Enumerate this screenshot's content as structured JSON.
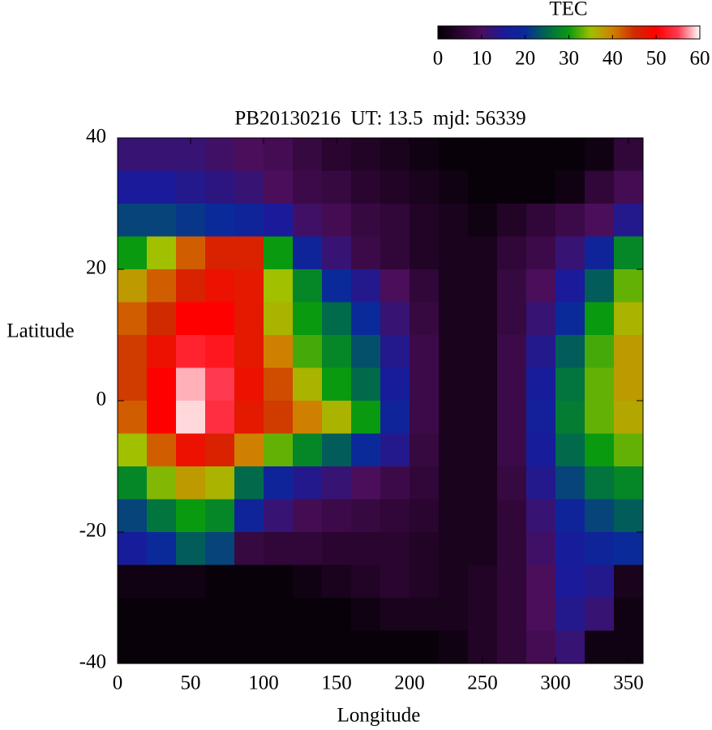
{
  "chart_data": {
    "type": "heatmap",
    "title": "PB20130216  UT: 13.5  mjd: 56339",
    "xlabel": "Longitude",
    "ylabel": "Latitude",
    "colorbar_label": "TEC",
    "xlim": [
      0,
      360
    ],
    "xticks": [
      0,
      50,
      100,
      150,
      200,
      250,
      300,
      350
    ],
    "ylim": [
      -40,
      40
    ],
    "yticks": [
      -40,
      -20,
      0,
      20,
      40
    ],
    "zlim": [
      0,
      60
    ],
    "zticks": [
      0,
      10,
      20,
      30,
      40,
      50,
      60
    ],
    "colormap": [
      "#000000",
      "#2a0530",
      "#4a0e5a",
      "#1a1a9a",
      "#0a2a9a",
      "#006a4a",
      "#0a9a10",
      "#a0c000",
      "#d08000",
      "#d02a00",
      "#ff0000",
      "#ff3a50",
      "#ffffff"
    ],
    "x": [
      10,
      30,
      50,
      70,
      90,
      110,
      130,
      150,
      170,
      190,
      210,
      230,
      250,
      270,
      290,
      310,
      330,
      350
    ],
    "y": [
      37.5,
      32.5,
      27.5,
      22.5,
      17.5,
      12.5,
      7.5,
      2.5,
      -2.5,
      -7.5,
      -12.5,
      -17.5,
      -22.5,
      -27.5,
      -32.5,
      -37.5
    ],
    "z": [
      [
        12,
        12,
        12,
        11,
        10,
        9,
        7,
        5,
        4,
        3,
        2,
        1,
        1,
        1,
        1,
        1,
        2,
        6
      ],
      [
        15,
        15,
        14,
        13,
        12,
        10,
        8,
        7,
        5,
        4,
        3,
        2,
        1,
        1,
        1,
        2,
        6,
        9
      ],
      [
        22,
        22,
        21,
        20,
        18,
        15,
        11,
        9,
        7,
        6,
        4,
        3,
        2,
        4,
        6,
        8,
        10,
        14
      ],
      [
        30,
        35,
        42,
        46,
        46,
        30,
        18,
        12,
        8,
        6,
        4,
        3,
        3,
        6,
        8,
        12,
        18,
        28
      ],
      [
        38,
        42,
        46,
        48,
        47,
        35,
        28,
        20,
        14,
        10,
        6,
        3,
        3,
        7,
        10,
        15,
        24,
        33
      ],
      [
        42,
        45,
        50,
        50,
        47,
        36,
        30,
        25,
        20,
        12,
        7,
        3,
        3,
        7,
        12,
        20,
        30,
        36
      ],
      [
        44,
        48,
        53,
        52,
        47,
        40,
        32,
        28,
        23,
        14,
        8,
        3,
        3,
        8,
        14,
        24,
        32,
        38
      ],
      [
        44,
        50,
        58,
        55,
        48,
        43,
        36,
        30,
        25,
        16,
        8,
        3,
        3,
        8,
        16,
        26,
        33,
        38
      ],
      [
        42,
        50,
        59,
        54,
        47,
        44,
        40,
        36,
        30,
        18,
        8,
        3,
        3,
        8,
        17,
        27,
        33,
        37
      ],
      [
        35,
        42,
        48,
        46,
        40,
        33,
        28,
        24,
        20,
        14,
        7,
        3,
        3,
        8,
        16,
        25,
        30,
        33
      ],
      [
        28,
        34,
        38,
        36,
        25,
        18,
        14,
        12,
        10,
        8,
        6,
        3,
        3,
        7,
        14,
        22,
        26,
        28
      ],
      [
        22,
        26,
        30,
        28,
        18,
        12,
        9,
        8,
        7,
        6,
        5,
        3,
        3,
        6,
        12,
        18,
        22,
        24
      ],
      [
        16,
        20,
        24,
        22,
        7,
        6,
        6,
        5,
        5,
        5,
        4,
        3,
        3,
        6,
        11,
        16,
        18,
        20
      ],
      [
        2,
        2,
        2,
        1,
        1,
        1,
        2,
        3,
        4,
        5,
        4,
        3,
        4,
        6,
        10,
        15,
        14,
        3
      ],
      [
        1,
        1,
        1,
        1,
        1,
        1,
        1,
        1,
        2,
        3,
        3,
        3,
        4,
        6,
        10,
        14,
        12,
        2
      ],
      [
        1,
        1,
        1,
        1,
        1,
        1,
        1,
        1,
        1,
        1,
        1,
        2,
        4,
        6,
        9,
        12,
        2,
        2
      ]
    ]
  }
}
